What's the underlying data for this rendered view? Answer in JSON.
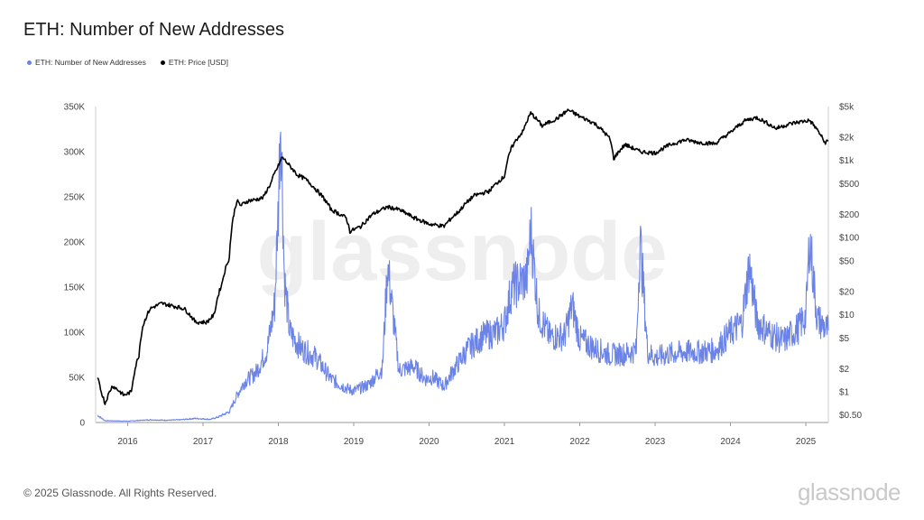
{
  "title": "ETH: Number of New Addresses",
  "legend": [
    {
      "label": "ETH: Number of New Addresses",
      "color": "#6b83e6"
    },
    {
      "label": "ETH: Price [USD]",
      "color": "#000000"
    }
  ],
  "footer": "© 2025 Glassnode. All Rights Reserved.",
  "brand": "glassnode",
  "watermark": "glassnode",
  "chart_data": {
    "type": "line",
    "title": "ETH: Number of New Addresses",
    "x_ticks": [
      "2016",
      "2017",
      "2018",
      "2019",
      "2020",
      "2021",
      "2022",
      "2023",
      "2024",
      "2025"
    ],
    "xlim": [
      "2015-07-30",
      "2025-04-20"
    ],
    "left_axis": {
      "ylim": [
        0,
        350000
      ],
      "ticks": [
        "0",
        "50K",
        "100K",
        "150K",
        "200K",
        "250K",
        "300K",
        "350K"
      ],
      "tick_values": [
        0,
        50000,
        100000,
        150000,
        200000,
        250000,
        300000,
        350000
      ]
    },
    "right_axis": {
      "scale": "log",
      "ticks": [
        "$0.50",
        "$1",
        "$2",
        "$5",
        "$10",
        "$20",
        "$50",
        "$100",
        "$200",
        "$500",
        "$1k",
        "$2k",
        "$5k"
      ],
      "tick_values": [
        0.5,
        1,
        2,
        5,
        10,
        20,
        50,
        100,
        200,
        500,
        1000,
        2000,
        5000
      ]
    },
    "grid": false,
    "legend_position": "top-left",
    "series": [
      {
        "name": "ETH: Number of New Addresses",
        "color": "#6b83e6",
        "axis": "left",
        "x": [
          2015.6,
          2015.7,
          2016.0,
          2016.3,
          2016.5,
          2016.7,
          2016.9,
          2017.1,
          2017.2,
          2017.35,
          2017.45,
          2017.55,
          2017.7,
          2017.85,
          2017.95,
          2018.0,
          2018.03,
          2018.08,
          2018.15,
          2018.3,
          2018.5,
          2018.7,
          2018.9,
          2019.0,
          2019.2,
          2019.38,
          2019.45,
          2019.6,
          2019.8,
          2019.95,
          2020.05,
          2020.2,
          2020.3,
          2020.5,
          2020.7,
          2020.9,
          2021.0,
          2021.1,
          2021.3,
          2021.35,
          2021.45,
          2021.6,
          2021.8,
          2021.9,
          2022.0,
          2022.2,
          2022.4,
          2022.6,
          2022.75,
          2022.8,
          2022.9,
          2023.0,
          2023.2,
          2023.4,
          2023.6,
          2023.8,
          2024.0,
          2024.15,
          2024.25,
          2024.35,
          2024.5,
          2024.7,
          2024.9,
          2025.0,
          2025.05,
          2025.15,
          2025.25,
          2025.3
        ],
        "values": [
          8000,
          2000,
          1500,
          3000,
          2500,
          3000,
          4500,
          3500,
          6000,
          12000,
          30000,
          45000,
          55000,
          80000,
          130000,
          240000,
          348000,
          160000,
          100000,
          82000,
          72000,
          48000,
          38000,
          35000,
          42000,
          60000,
          175000,
          58000,
          62000,
          48000,
          50000,
          40000,
          55000,
          80000,
          95000,
          100000,
          110000,
          150000,
          160000,
          215000,
          120000,
          95000,
          96000,
          130000,
          92000,
          82000,
          75000,
          76000,
          80000,
          205000,
          78000,
          72000,
          76000,
          78000,
          78000,
          80000,
          100000,
          110000,
          175000,
          112000,
          100000,
          90000,
          105000,
          118000,
          205000,
          115000,
          105000,
          102000
        ]
      },
      {
        "name": "ETH: Price [USD]",
        "color": "#000000",
        "axis": "right",
        "x": [
          2015.6,
          2015.65,
          2015.7,
          2015.8,
          2015.95,
          2016.05,
          2016.15,
          2016.2,
          2016.3,
          2016.45,
          2016.6,
          2016.75,
          2016.9,
          2017.05,
          2017.15,
          2017.25,
          2017.35,
          2017.45,
          2017.5,
          2017.6,
          2017.7,
          2017.8,
          2017.9,
          2018.0,
          2018.05,
          2018.15,
          2018.25,
          2018.35,
          2018.5,
          2018.7,
          2018.9,
          2018.95,
          2019.1,
          2019.25,
          2019.45,
          2019.6,
          2019.8,
          2020.0,
          2020.2,
          2020.4,
          2020.6,
          2020.8,
          2021.0,
          2021.1,
          2021.25,
          2021.35,
          2021.5,
          2021.7,
          2021.85,
          2022.0,
          2022.2,
          2022.4,
          2022.45,
          2022.6,
          2022.8,
          2023.0,
          2023.2,
          2023.4,
          2023.6,
          2023.8,
          2024.0,
          2024.2,
          2024.35,
          2024.6,
          2024.8,
          2024.95,
          2025.05,
          2025.15,
          2025.25,
          2025.3
        ],
        "values": [
          1.5,
          1.0,
          0.7,
          1.2,
          0.9,
          1.0,
          3,
          7,
          12,
          14,
          13,
          12,
          8,
          8,
          10,
          25,
          55,
          300,
          260,
          300,
          310,
          330,
          500,
          850,
          1100,
          850,
          650,
          580,
          420,
          230,
          180,
          120,
          140,
          200,
          250,
          230,
          180,
          150,
          140,
          220,
          350,
          400,
          620,
          1500,
          2400,
          4100,
          2800,
          3500,
          4500,
          3700,
          3000,
          1900,
          1050,
          1600,
          1300,
          1250,
          1600,
          1850,
          1700,
          1650,
          2300,
          3300,
          3600,
          2600,
          3000,
          3200,
          3300,
          2500,
          1700,
          1800
        ]
      }
    ]
  }
}
